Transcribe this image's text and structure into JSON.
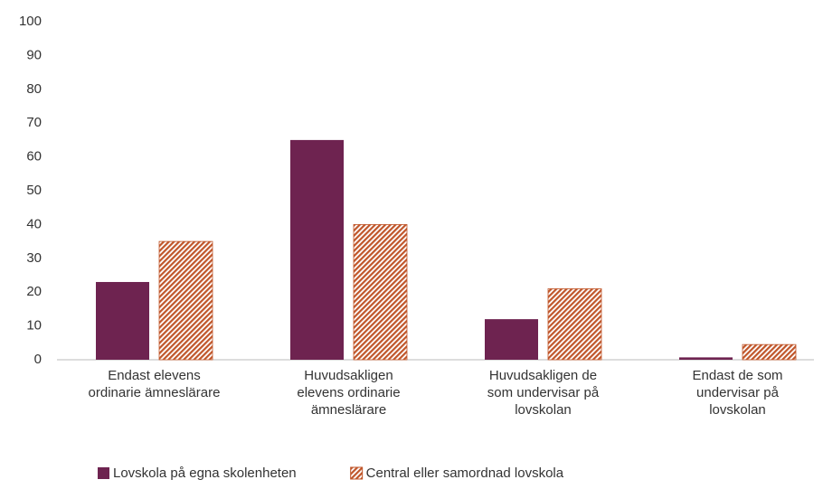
{
  "chart_data": {
    "type": "bar",
    "categories": [
      "Endast elevens\nordinarie ämneslärare",
      "Huvudsakligen\nelevens ordinarie\nämneslärare",
      "Huvudsakligen de\nsom undervisar på\nlovskolan",
      "Endast de som\nundervisar på\nlovskolan"
    ],
    "series": [
      {
        "name": "Lovskola på egna skolenheten",
        "color": "#6e2350",
        "values": [
          23,
          65,
          12,
          0.7
        ]
      },
      {
        "name": "Central eller samordnad lovskola",
        "color": "#c0562a",
        "hatch": true,
        "values": [
          35,
          40,
          21,
          4.5
        ]
      }
    ],
    "ylim": [
      0,
      100
    ],
    "yticks": [
      0,
      10,
      20,
      30,
      40,
      50,
      60,
      70,
      80,
      90,
      100
    ],
    "grid": false
  }
}
